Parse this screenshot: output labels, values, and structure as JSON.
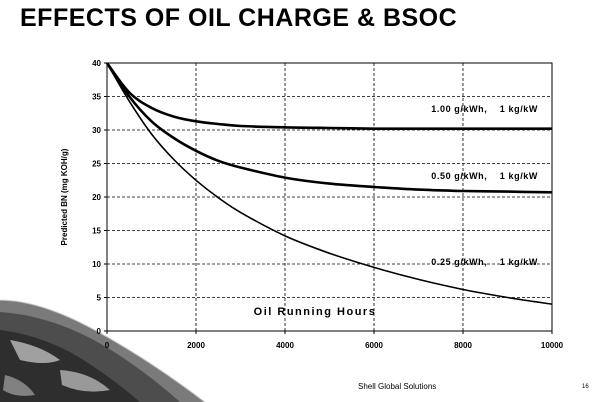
{
  "slide": {
    "title": "EFFECTS OF OIL CHARGE & BSOC",
    "footer": "Shell Global Solutions",
    "page_number": "16"
  },
  "chart_data": {
    "type": "line",
    "title": "",
    "xlabel": "Oil Running Hours",
    "ylabel": "Predicted BN (mg KOH/g)",
    "xlim": [
      0,
      10000
    ],
    "ylim": [
      0,
      40
    ],
    "x_ticks": [
      "0",
      "2000",
      "4000",
      "6000",
      "8000",
      "10000"
    ],
    "y_ticks": [
      "0",
      "5",
      "10",
      "15",
      "20",
      "25",
      "30",
      "35",
      "40"
    ],
    "grid": true,
    "x": [
      0,
      500,
      1000,
      1500,
      2000,
      2500,
      3000,
      4000,
      5000,
      6000,
      7000,
      8000,
      9000,
      10000
    ],
    "series": [
      {
        "name": "1.00 g/kWh, 1 kg/kW",
        "label_text": "1.00 g/kWh,    1 kg/kW",
        "values": [
          40,
          35.6,
          33.3,
          32.0,
          31.3,
          30.9,
          30.6,
          30.4,
          30.3,
          30.2,
          30.2,
          30.2,
          30.2,
          30.2
        ]
      },
      {
        "name": "0.50 g/kWh, 1 kg/kW",
        "label_text": "0.50 g/kWh,    1 kg/kW",
        "values": [
          40,
          35.0,
          31.3,
          28.8,
          26.9,
          25.4,
          24.4,
          22.9,
          22.0,
          21.5,
          21.1,
          20.9,
          20.8,
          20.7
        ]
      },
      {
        "name": "0.25 g/kWh, 1 kg/kW",
        "label_text": "0.25 g/kWh,    1 kg/kW",
        "values": [
          40,
          34.3,
          29.4,
          25.6,
          22.5,
          19.9,
          17.7,
          14.2,
          11.6,
          9.5,
          7.7,
          6.2,
          5.0,
          4.0
        ]
      }
    ]
  }
}
